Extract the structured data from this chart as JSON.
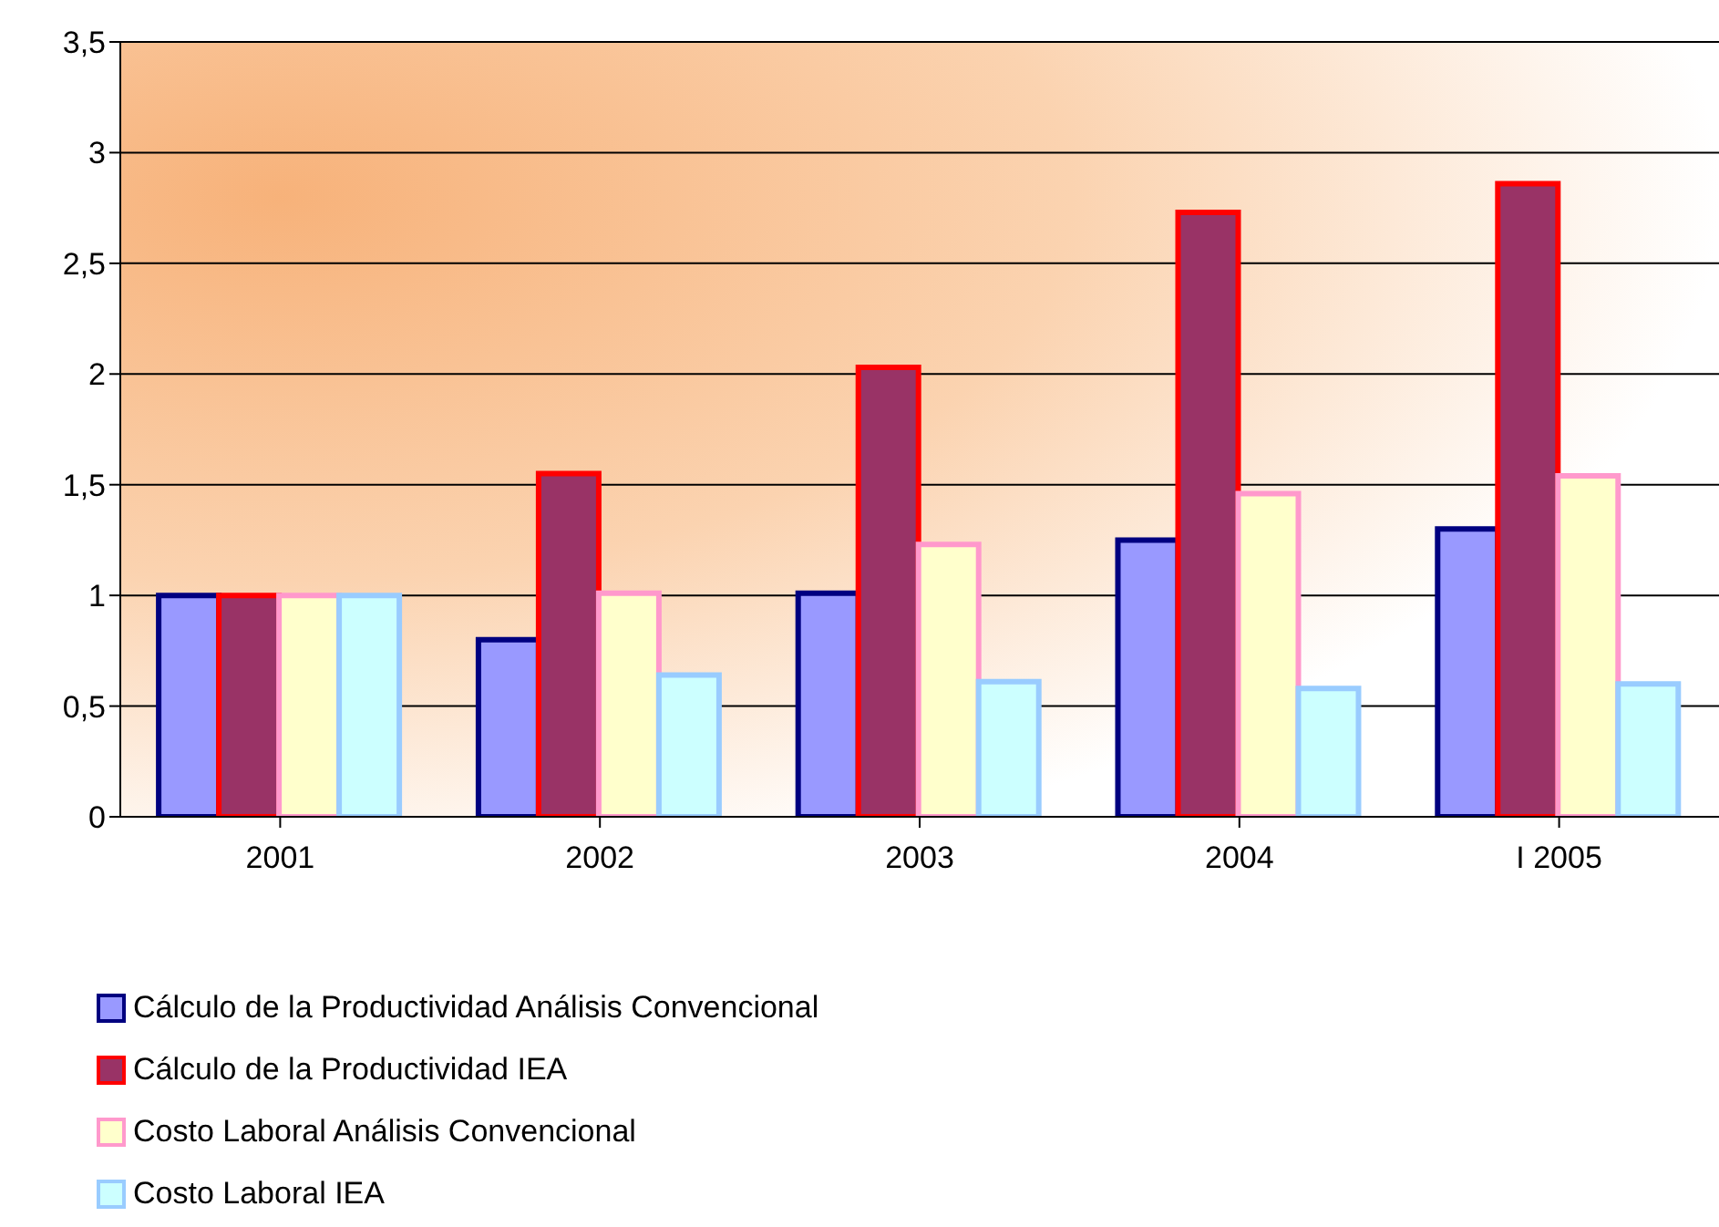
{
  "chart_data": {
    "type": "bar",
    "categories": [
      "2001",
      "2002",
      "2003",
      "2004",
      "I 2005"
    ],
    "series": [
      {
        "name": "Cálculo de la Productividad Análisis Convencional",
        "color": "#9999ff",
        "values": [
          1,
          0.8,
          1.01,
          1.25,
          1.3
        ]
      },
      {
        "name": "Cálculo de la Productividad IEA",
        "color": "#993366",
        "values": [
          1,
          1.55,
          2.03,
          2.73,
          2.86
        ]
      },
      {
        "name": "Costo Laboral Análisis Convencional",
        "color": "#ffffcc",
        "values": [
          1,
          1.01,
          1.23,
          1.46,
          1.54
        ]
      },
      {
        "name": "Costo Laboral IEA",
        "color": "#ccffff",
        "values": [
          1,
          0.64,
          0.61,
          0.58,
          0.6
        ]
      }
    ],
    "ylim": [
      0,
      3.5
    ],
    "yticks": [
      0,
      {
        "value": 0.5,
        "label": "0,5"
      },
      1,
      {
        "value": 1.5,
        "label": "1,5"
      },
      2,
      {
        "value": 2.5,
        "label": "2,5"
      },
      3,
      {
        "value": 3.5,
        "label": "3,5"
      }
    ],
    "grid": "y",
    "legend": "bottom"
  }
}
